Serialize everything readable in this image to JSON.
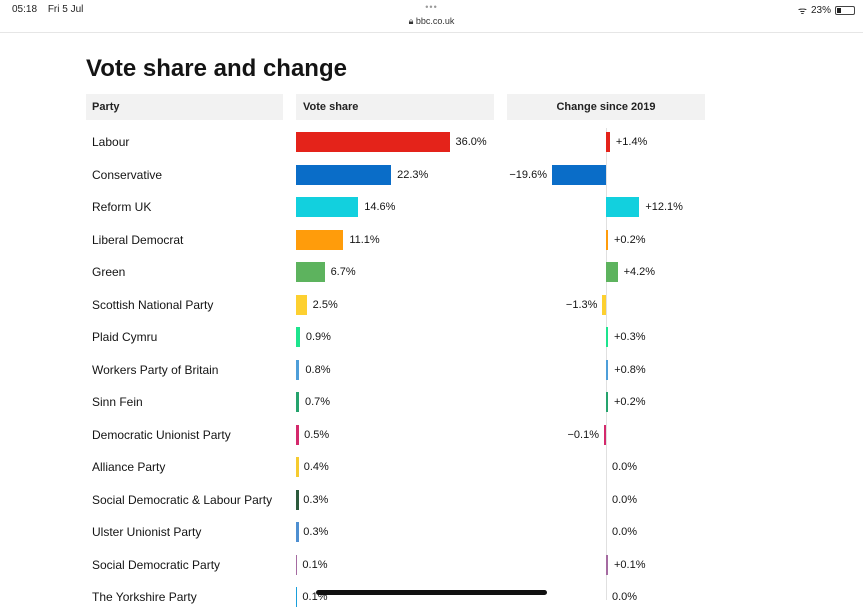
{
  "status": {
    "time": "05:18",
    "date": "Fri 5 Jul",
    "dots": "•••",
    "url": "bbc.co.uk",
    "battery": "23%",
    "battery_level": 0.23
  },
  "page": {
    "title": "Vote share and change",
    "headers": {
      "party": "Party",
      "share": "Vote share",
      "change": "Change since 2019"
    }
  },
  "parties": [
    {
      "name": "Labour",
      "share": 36.0,
      "share_label": "36.0%",
      "change": 1.4,
      "change_label": "+1.4%",
      "color": "#E4231A"
    },
    {
      "name": "Conservative",
      "share": 22.3,
      "share_label": "22.3%",
      "change": -19.6,
      "change_label": "−19.6%",
      "color": "#0A6DC8"
    },
    {
      "name": "Reform UK",
      "share": 14.6,
      "share_label": "14.6%",
      "change": 12.1,
      "change_label": "+12.1%",
      "color": "#12D0DE"
    },
    {
      "name": "Liberal Democrat",
      "share": 11.1,
      "share_label": "11.1%",
      "change": 0.2,
      "change_label": "+0.2%",
      "color": "#FF9C0B"
    },
    {
      "name": "Green",
      "share": 6.7,
      "share_label": "6.7%",
      "change": 4.2,
      "change_label": "+4.2%",
      "color": "#5DB35E"
    },
    {
      "name": "Scottish National Party",
      "share": 2.5,
      "share_label": "2.5%",
      "change": -1.3,
      "change_label": "−1.3%",
      "color": "#FDD030"
    },
    {
      "name": "Plaid Cymru",
      "share": 0.9,
      "share_label": "0.9%",
      "change": 0.3,
      "change_label": "+0.3%",
      "color": "#1DE48E"
    },
    {
      "name": "Workers Party of Britain",
      "share": 0.8,
      "share_label": "0.8%",
      "change": 0.8,
      "change_label": "+0.8%",
      "color": "#4E9ED9"
    },
    {
      "name": "Sinn Fein",
      "share": 0.7,
      "share_label": "0.7%",
      "change": 0.2,
      "change_label": "+0.2%",
      "color": "#25A36D"
    },
    {
      "name": "Democratic Unionist Party",
      "share": 0.5,
      "share_label": "0.5%",
      "change": -0.1,
      "change_label": "−0.1%",
      "color": "#D4296C"
    },
    {
      "name": "Alliance Party",
      "share": 0.4,
      "share_label": "0.4%",
      "change": 0.0,
      "change_label": "0.0%",
      "color": "#F6CB2F"
    },
    {
      "name": "Social Democratic & Labour Party",
      "share": 0.3,
      "share_label": "0.3%",
      "change": 0.0,
      "change_label": "0.0%",
      "color": "#2C5A3C"
    },
    {
      "name": "Ulster Unionist Party",
      "share": 0.3,
      "share_label": "0.3%",
      "change": 0.0,
      "change_label": "0.0%",
      "color": "#4E8FD1"
    },
    {
      "name": "Social Democratic Party",
      "share": 0.1,
      "share_label": "0.1%",
      "change": 0.1,
      "change_label": "+0.1%",
      "color": "#A56BA1"
    },
    {
      "name": "The Yorkshire Party",
      "share": 0.1,
      "share_label": "0.1%",
      "change": 0.0,
      "change_label": "0.0%",
      "color": "#1A9FDB"
    }
  ]
}
